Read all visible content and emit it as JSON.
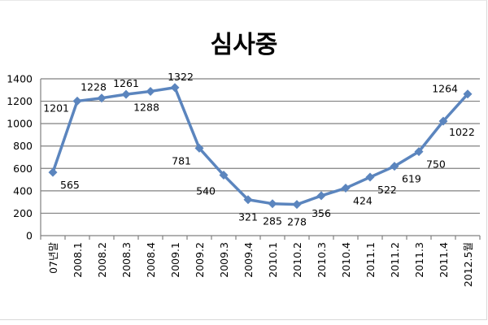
{
  "chart_data": {
    "type": "line",
    "title": "심사중",
    "categories": [
      "07년말",
      "2008.1",
      "2008.2",
      "2008.3",
      "2008.4",
      "2009.1",
      "2009.2",
      "2009.3",
      "2009.4",
      "2010.1",
      "2010.2",
      "2010.3",
      "2010.4",
      "2011.1",
      "2011.2",
      "2011.3",
      "2011.4",
      "2012.5월"
    ],
    "series": [
      {
        "values": [
          565,
          1201,
          1228,
          1261,
          1288,
          1322,
          781,
          540,
          321,
          285,
          278,
          356,
          424,
          522,
          619,
          750,
          1022,
          1264
        ]
      }
    ],
    "data_labels": [
      "565",
      "1201",
      "1228",
      "1261",
      "1288",
      "1322",
      "781",
      "540",
      "321",
      "285",
      "278",
      "356",
      "424",
      "522",
      "619",
      "750",
      "1022",
      "1264"
    ],
    "y_ticks": [
      "0",
      "200",
      "400",
      "600",
      "800",
      "1000",
      "1200",
      "1400"
    ],
    "ylim": [
      0,
      1400
    ],
    "grid": true,
    "legend": "none",
    "colors": {
      "line": "#5b85be",
      "grid": "#808080",
      "axis": "#808080"
    }
  }
}
